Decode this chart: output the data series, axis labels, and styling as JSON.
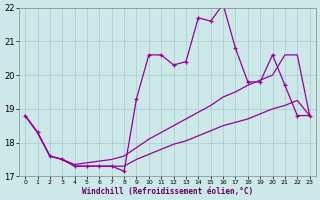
{
  "xlabel": "Windchill (Refroidissement éolien,°C)",
  "line_color": "#990099",
  "bg_color": "#cce8e8",
  "grid_color": "#aacccc",
  "xlim": [
    -0.5,
    23.5
  ],
  "ylim": [
    17,
    22
  ],
  "yticks": [
    17,
    18,
    19,
    20,
    21,
    22
  ],
  "xticks": [
    0,
    1,
    2,
    3,
    4,
    5,
    6,
    7,
    8,
    9,
    10,
    11,
    12,
    13,
    14,
    15,
    16,
    17,
    18,
    19,
    20,
    21,
    22,
    23
  ],
  "line_main_x": [
    0,
    1,
    2,
    3,
    4,
    5,
    6,
    7,
    8,
    9,
    10,
    11,
    12,
    13,
    14,
    15,
    16,
    17,
    18,
    19,
    20,
    21,
    22,
    23
  ],
  "line_main_y": [
    18.8,
    18.3,
    17.6,
    17.5,
    17.3,
    17.3,
    17.3,
    17.3,
    17.15,
    19.3,
    20.6,
    20.6,
    20.3,
    20.4,
    21.7,
    21.6,
    22.1,
    20.8,
    19.8,
    19.8,
    20.6,
    19.7,
    18.8,
    18.8
  ],
  "line_upper_x": [
    0,
    1,
    2,
    3,
    4,
    5,
    6,
    7,
    8,
    9,
    10,
    11,
    12,
    13,
    14,
    15,
    16,
    17,
    18,
    19,
    20,
    21,
    22,
    23
  ],
  "line_upper_y": [
    18.8,
    18.3,
    17.6,
    17.5,
    17.35,
    17.4,
    17.45,
    17.5,
    17.6,
    17.85,
    18.1,
    18.3,
    18.5,
    18.7,
    18.9,
    19.1,
    19.35,
    19.5,
    19.7,
    19.85,
    20.0,
    20.6,
    20.6,
    18.8
  ],
  "line_lower_x": [
    0,
    1,
    2,
    3,
    4,
    5,
    6,
    7,
    8,
    9,
    10,
    11,
    12,
    13,
    14,
    15,
    16,
    17,
    18,
    19,
    20,
    21,
    22,
    23
  ],
  "line_lower_y": [
    18.8,
    18.3,
    17.6,
    17.5,
    17.3,
    17.3,
    17.3,
    17.3,
    17.3,
    17.5,
    17.65,
    17.8,
    17.95,
    18.05,
    18.2,
    18.35,
    18.5,
    18.6,
    18.7,
    18.85,
    19.0,
    19.1,
    19.25,
    18.8
  ]
}
